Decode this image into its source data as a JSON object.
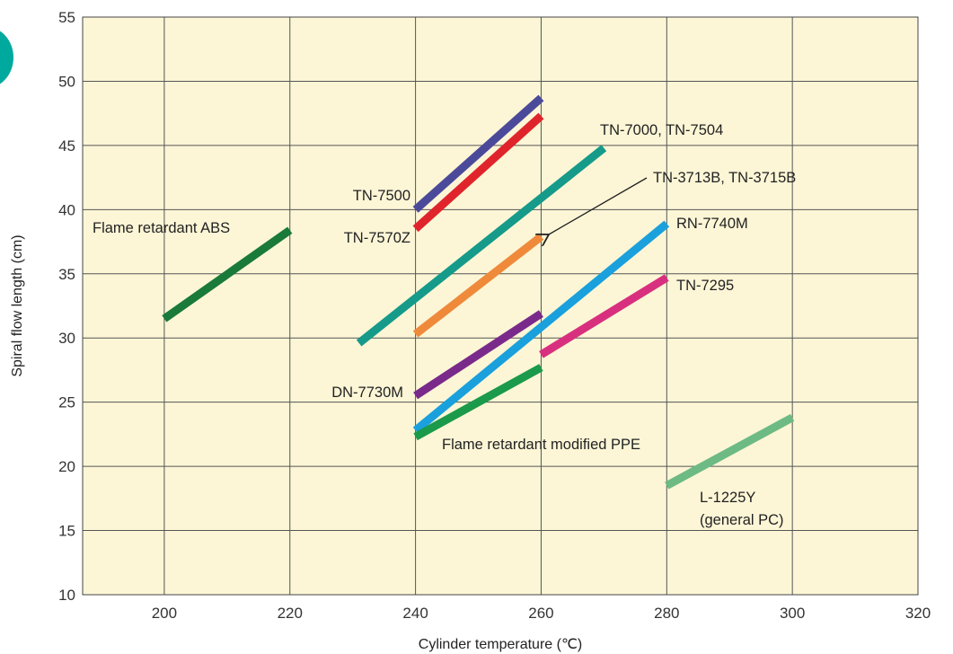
{
  "chart_data": {
    "type": "line",
    "title": "",
    "xlabel": "Cylinder temperature (℃)",
    "ylabel": "Spiral flow length (cm)",
    "xlim": [
      187,
      320
    ],
    "ylim": [
      10,
      55
    ],
    "xticks": [
      200,
      220,
      240,
      260,
      280,
      300,
      320
    ],
    "yticks": [
      10,
      15,
      20,
      25,
      30,
      35,
      40,
      45,
      50,
      55
    ],
    "grid": true,
    "background_color": "#fcf6d6",
    "accent_color": "#00a99d",
    "series": [
      {
        "name": "Flame retardant ABS",
        "color": "#1a7a3a",
        "x": [
          200,
          220
        ],
        "y": [
          31.5,
          38.4
        ]
      },
      {
        "name": "TN-7500",
        "color": "#4b4a9a",
        "x": [
          240,
          260
        ],
        "y": [
          40.0,
          48.7
        ]
      },
      {
        "name": "TN-7570Z",
        "color": "#e0242b",
        "x": [
          240,
          260
        ],
        "y": [
          38.5,
          47.3
        ]
      },
      {
        "name": "TN-7000, TN-7504",
        "color": "#169a8a",
        "x": [
          231,
          270
        ],
        "y": [
          29.6,
          44.8
        ]
      },
      {
        "name": "TN-3713B, TN-3715B",
        "color": "#ef8a3b",
        "x": [
          240,
          260
        ],
        "y": [
          30.3,
          37.9
        ]
      },
      {
        "name": "RN-7740M",
        "color": "#1aa0dc",
        "x": [
          240,
          280
        ],
        "y": [
          22.8,
          38.9
        ]
      },
      {
        "name": "TN-7295",
        "color": "#d8307f",
        "x": [
          260,
          280
        ],
        "y": [
          28.7,
          34.7
        ]
      },
      {
        "name": "DN-7730M",
        "color": "#7a2a8a",
        "x": [
          240,
          260
        ],
        "y": [
          25.5,
          31.9
        ]
      },
      {
        "name": "Flame retardant modified PPE",
        "color": "#1a9a4a",
        "x": [
          240,
          260
        ],
        "y": [
          22.3,
          27.7
        ]
      },
      {
        "name": "L-1225Y\n(general PC)",
        "color": "#6dba84",
        "x": [
          280,
          300
        ],
        "y": [
          18.5,
          23.8
        ]
      }
    ],
    "annotations": [
      {
        "text": "Flame retardant ABS",
        "series": 0
      },
      {
        "text": "TN-7500",
        "series": 1
      },
      {
        "text": "TN-7570Z",
        "series": 2
      },
      {
        "text": "TN-7000, TN-7504",
        "series": 3
      },
      {
        "text": "TN-3713B, TN-3715B",
        "series": 4,
        "arrow": true
      },
      {
        "text": "RN-7740M",
        "series": 5
      },
      {
        "text": "TN-7295",
        "series": 6
      },
      {
        "text": "DN-7730M",
        "series": 7
      },
      {
        "text": "Flame retardant modified PPE",
        "series": 8
      },
      {
        "text": "L-1225Y",
        "series": 9
      },
      {
        "text": "(general PC)",
        "series": 9
      }
    ]
  }
}
